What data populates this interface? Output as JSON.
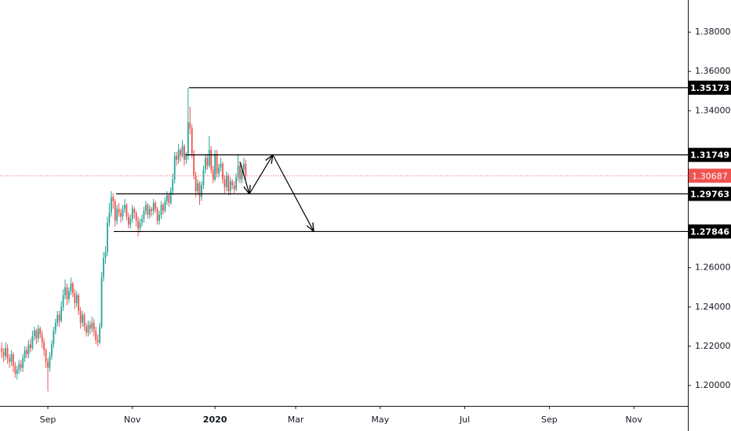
{
  "chart_data": {
    "type": "candlestick",
    "up_color": "#26a69a",
    "down_color": "#ef5350",
    "last_price_color": "#ef5350",
    "level_color": "#000000",
    "annotation_color": "#000000",
    "xlim": [
      -24.9,
      333.1
    ],
    "ylim": [
      1.1896,
      1.3964
    ],
    "xticks": [
      {
        "value": 0,
        "label": "Sep"
      },
      {
        "value": 44,
        "label": "Nov"
      },
      {
        "value": 87,
        "label": "2020"
      },
      {
        "value": 129,
        "label": "Mar"
      },
      {
        "value": 173,
        "label": "May"
      },
      {
        "value": 217,
        "label": "Jul"
      },
      {
        "value": 261,
        "label": "Sep"
      },
      {
        "value": 305,
        "label": "Nov"
      }
    ],
    "yticks": [
      {
        "value": 1.2,
        "label": "1.20000"
      },
      {
        "value": 1.22,
        "label": "1.22000"
      },
      {
        "value": 1.24,
        "label": "1.24000"
      },
      {
        "value": 1.26,
        "label": "1.26000"
      },
      {
        "value": 1.34,
        "label": "1.34000"
      },
      {
        "value": 1.36,
        "label": "1.36000"
      },
      {
        "value": 1.38,
        "label": "1.38000"
      }
    ],
    "levels": [
      {
        "value": 1.35173,
        "x_start": 73.5
      },
      {
        "value": 1.31749,
        "x_start": 71.4
      },
      {
        "value": 1.29763,
        "x_start": 35.5
      },
      {
        "value": 1.27846,
        "x_start": 34.3
      }
    ],
    "projection": [
      [
        100,
        1.314
      ],
      [
        104.9,
        1.2976
      ],
      [
        117.1,
        1.3175
      ],
      [
        138.4,
        1.2785
      ]
    ],
    "x": [
      -24,
      -23,
      -22,
      -21,
      -20,
      -19,
      -18,
      -17,
      -16,
      -15,
      -14,
      -13,
      -12,
      -11,
      -10,
      -9,
      -8,
      -7,
      -6,
      -5,
      -4,
      -3,
      -2,
      -1,
      0,
      1,
      2,
      3,
      4,
      5,
      6,
      7,
      8,
      9,
      10,
      11,
      12,
      13,
      14,
      15,
      16,
      17,
      18,
      19,
      20,
      21,
      22,
      23,
      24,
      25,
      26,
      27,
      28,
      29,
      30,
      31,
      32,
      33,
      34,
      35,
      36,
      37,
      38,
      39,
      40,
      41,
      42,
      43,
      44,
      45,
      46,
      47,
      48,
      49,
      50,
      51,
      52,
      53,
      54,
      55,
      56,
      57,
      58,
      59,
      60,
      61,
      62,
      63,
      64,
      65,
      66,
      67,
      68,
      69,
      70,
      71,
      72,
      73,
      74,
      75,
      76,
      77,
      78,
      79,
      80,
      81,
      82,
      83,
      84,
      85,
      86,
      87,
      88,
      89,
      90,
      91,
      92,
      93,
      94,
      95,
      96,
      97,
      98,
      99,
      100,
      101,
      102,
      103
    ],
    "ohlc": [
      [
        1.219,
        1.222,
        1.214,
        1.217
      ],
      [
        1.217,
        1.219,
        1.212,
        1.215
      ],
      [
        1.215,
        1.222,
        1.213,
        1.219
      ],
      [
        1.219,
        1.221,
        1.211,
        1.214
      ],
      [
        1.214,
        1.216,
        1.209,
        1.212
      ],
      [
        1.212,
        1.218,
        1.21,
        1.216
      ],
      [
        1.216,
        1.217,
        1.207,
        1.21
      ],
      [
        1.21,
        1.212,
        1.204,
        1.206
      ],
      [
        1.206,
        1.21,
        1.203,
        1.208
      ],
      [
        1.208,
        1.213,
        1.206,
        1.211
      ],
      [
        1.211,
        1.213,
        1.207,
        1.209
      ],
      [
        1.209,
        1.216,
        1.207,
        1.214
      ],
      [
        1.214,
        1.22,
        1.212,
        1.218
      ],
      [
        1.218,
        1.22,
        1.214,
        1.216
      ],
      [
        1.216,
        1.223,
        1.214,
        1.221
      ],
      [
        1.221,
        1.224,
        1.217,
        1.219
      ],
      [
        1.219,
        1.228,
        1.218,
        1.225
      ],
      [
        1.225,
        1.23,
        1.223,
        1.228
      ],
      [
        1.228,
        1.229,
        1.221,
        1.224
      ],
      [
        1.224,
        1.231,
        1.222,
        1.229
      ],
      [
        1.229,
        1.23,
        1.224,
        1.226
      ],
      [
        1.226,
        1.228,
        1.219,
        1.222
      ],
      [
        1.222,
        1.224,
        1.215,
        1.218
      ],
      [
        1.218,
        1.219,
        1.209,
        1.212
      ],
      [
        1.212,
        1.214,
        1.197,
        1.209
      ],
      [
        1.209,
        1.217,
        1.207,
        1.215
      ],
      [
        1.215,
        1.223,
        1.213,
        1.221
      ],
      [
        1.221,
        1.23,
        1.219,
        1.228
      ],
      [
        1.228,
        1.234,
        1.226,
        1.232
      ],
      [
        1.232,
        1.238,
        1.23,
        1.236
      ],
      [
        1.236,
        1.238,
        1.23,
        1.233
      ],
      [
        1.233,
        1.243,
        1.232,
        1.24
      ],
      [
        1.24,
        1.249,
        1.238,
        1.246
      ],
      [
        1.246,
        1.254,
        1.244,
        1.25
      ],
      [
        1.25,
        1.252,
        1.241,
        1.244
      ],
      [
        1.244,
        1.25,
        1.242,
        1.248
      ],
      [
        1.248,
        1.255,
        1.246,
        1.252
      ],
      [
        1.252,
        1.253,
        1.245,
        1.247
      ],
      [
        1.247,
        1.249,
        1.239,
        1.242
      ],
      [
        1.242,
        1.248,
        1.24,
        1.246
      ],
      [
        1.246,
        1.247,
        1.236,
        1.238
      ],
      [
        1.238,
        1.24,
        1.229,
        1.232
      ],
      [
        1.232,
        1.238,
        1.23,
        1.236
      ],
      [
        1.236,
        1.237,
        1.228,
        1.23
      ],
      [
        1.23,
        1.232,
        1.225,
        1.227
      ],
      [
        1.227,
        1.233,
        1.225,
        1.231
      ],
      [
        1.231,
        1.233,
        1.226,
        1.229
      ],
      [
        1.229,
        1.235,
        1.227,
        1.232
      ],
      [
        1.232,
        1.234,
        1.225,
        1.228
      ],
      [
        1.228,
        1.23,
        1.221,
        1.223
      ],
      [
        1.223,
        1.226,
        1.22,
        1.222
      ],
      [
        1.222,
        1.232,
        1.221,
        1.23
      ],
      [
        1.23,
        1.258,
        1.229,
        1.255
      ],
      [
        1.255,
        1.268,
        1.253,
        1.265
      ],
      [
        1.265,
        1.271,
        1.262,
        1.268
      ],
      [
        1.268,
        1.286,
        1.266,
        1.283
      ],
      [
        1.283,
        1.293,
        1.281,
        1.288
      ],
      [
        1.288,
        1.299,
        1.286,
        1.296
      ],
      [
        1.296,
        1.298,
        1.29,
        1.294
      ],
      [
        1.294,
        1.295,
        1.281,
        1.284
      ],
      [
        1.284,
        1.292,
        1.282,
        1.29
      ],
      [
        1.29,
        1.293,
        1.286,
        1.288
      ],
      [
        1.288,
        1.29,
        1.283,
        1.286
      ],
      [
        1.286,
        1.292,
        1.284,
        1.29
      ],
      [
        1.29,
        1.295,
        1.288,
        1.292
      ],
      [
        1.292,
        1.293,
        1.284,
        1.286
      ],
      [
        1.286,
        1.288,
        1.28,
        1.282
      ],
      [
        1.282,
        1.287,
        1.28,
        1.285
      ],
      [
        1.285,
        1.292,
        1.283,
        1.29
      ],
      [
        1.29,
        1.291,
        1.285,
        1.288
      ],
      [
        1.288,
        1.289,
        1.281,
        1.284
      ],
      [
        1.284,
        1.286,
        1.276,
        1.28
      ],
      [
        1.28,
        1.285,
        1.278,
        1.283
      ],
      [
        1.283,
        1.287,
        1.281,
        1.285
      ],
      [
        1.285,
        1.291,
        1.283,
        1.289
      ],
      [
        1.289,
        1.294,
        1.287,
        1.292
      ],
      [
        1.292,
        1.293,
        1.285,
        1.287
      ],
      [
        1.287,
        1.292,
        1.285,
        1.29
      ],
      [
        1.29,
        1.291,
        1.286,
        1.289
      ],
      [
        1.289,
        1.295,
        1.287,
        1.293
      ],
      [
        1.293,
        1.294,
        1.288,
        1.29
      ],
      [
        1.29,
        1.291,
        1.282,
        1.284
      ],
      [
        1.284,
        1.289,
        1.282,
        1.287
      ],
      [
        1.287,
        1.294,
        1.285,
        1.292
      ],
      [
        1.292,
        1.293,
        1.287,
        1.289
      ],
      [
        1.289,
        1.296,
        1.288,
        1.294
      ],
      [
        1.294,
        1.299,
        1.292,
        1.297
      ],
      [
        1.297,
        1.298,
        1.291,
        1.293
      ],
      [
        1.293,
        1.301,
        1.292,
        1.299
      ],
      [
        1.299,
        1.308,
        1.297,
        1.305
      ],
      [
        1.305,
        1.319,
        1.303,
        1.317
      ],
      [
        1.317,
        1.319,
        1.312,
        1.315
      ],
      [
        1.315,
        1.323,
        1.313,
        1.32
      ],
      [
        1.32,
        1.321,
        1.314,
        1.317
      ],
      [
        1.317,
        1.325,
        1.316,
        1.322
      ],
      [
        1.322,
        1.323,
        1.312,
        1.315
      ],
      [
        1.315,
        1.319,
        1.313,
        1.317
      ],
      [
        1.317,
        1.3517,
        1.315,
        1.334
      ],
      [
        1.334,
        1.342,
        1.328,
        1.331
      ],
      [
        1.331,
        1.333,
        1.316,
        1.318
      ],
      [
        1.318,
        1.32,
        1.305,
        1.307
      ],
      [
        1.307,
        1.309,
        1.296,
        1.299
      ],
      [
        1.299,
        1.305,
        1.297,
        1.303
      ],
      [
        1.303,
        1.304,
        1.292,
        1.296
      ],
      [
        1.296,
        1.304,
        1.294,
        1.302
      ],
      [
        1.302,
        1.312,
        1.3,
        1.31
      ],
      [
        1.31,
        1.318,
        1.308,
        1.316
      ],
      [
        1.316,
        1.318,
        1.31,
        1.312
      ],
      [
        1.312,
        1.327,
        1.311,
        1.32
      ],
      [
        1.32,
        1.322,
        1.308,
        1.31
      ],
      [
        1.31,
        1.312,
        1.303,
        1.305
      ],
      [
        1.305,
        1.32,
        1.304,
        1.318
      ],
      [
        1.318,
        1.32,
        1.306,
        1.308
      ],
      [
        1.308,
        1.313,
        1.306,
        1.311
      ],
      [
        1.311,
        1.316,
        1.309,
        1.313
      ],
      [
        1.313,
        1.314,
        1.303,
        1.305
      ],
      [
        1.305,
        1.307,
        1.298,
        1.301
      ],
      [
        1.301,
        1.309,
        1.299,
        1.307
      ],
      [
        1.307,
        1.308,
        1.297,
        1.299
      ],
      [
        1.299,
        1.306,
        1.297,
        1.304
      ],
      [
        1.304,
        1.305,
        1.3,
        1.302
      ],
      [
        1.302,
        1.304,
        1.298,
        1.3
      ],
      [
        1.3,
        1.308,
        1.299,
        1.306
      ],
      [
        1.306,
        1.318,
        1.304,
        1.312
      ],
      [
        1.312,
        1.314,
        1.303,
        1.305
      ],
      [
        1.305,
        1.312,
        1.303,
        1.31
      ],
      [
        1.31,
        1.316,
        1.308,
        1.313
      ],
      [
        1.313,
        1.315,
        1.305,
        1.30687
      ]
    ]
  }
}
